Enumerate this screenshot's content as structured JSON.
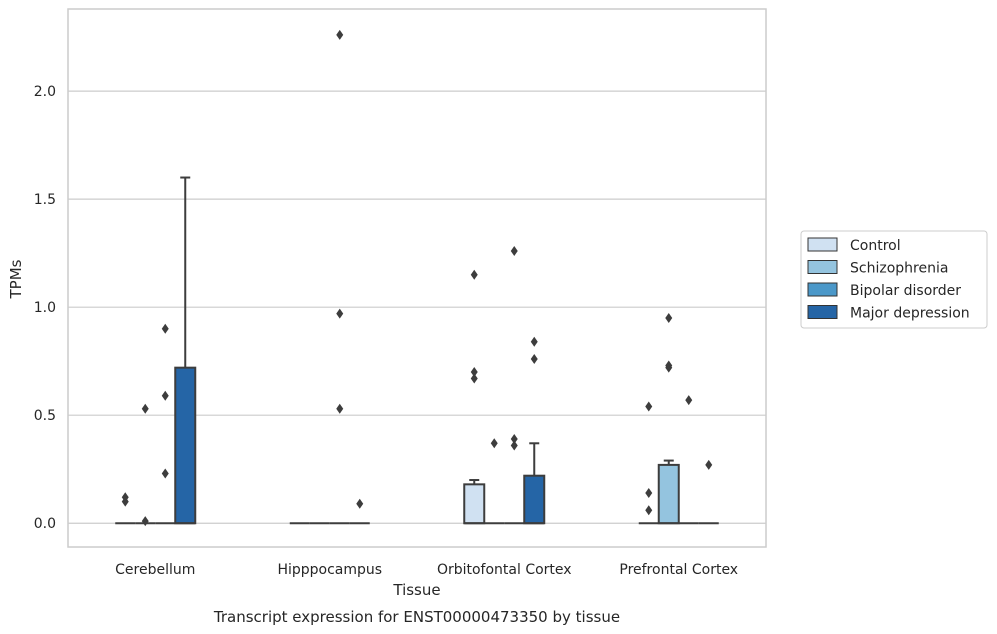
{
  "caption": "Transcript expression for ENST00000473350 by tissue",
  "colors": {
    "Control": "#d0e1f2",
    "Schizophrenia": "#94c4df",
    "Bipolar disorder": "#4b98c9",
    "Major depression": "#2565a6",
    "edge": "#3d3d3d",
    "grid": "#cccccc",
    "frame": "#cccccc"
  },
  "chart_data": {
    "type": "box",
    "xlabel": "Tissue",
    "ylabel": "TPMs",
    "ylim": [
      -0.11,
      2.38
    ],
    "yticks": [
      0.0,
      0.5,
      1.0,
      1.5,
      2.0
    ],
    "ytick_labels": [
      "0.0",
      "0.5",
      "1.0",
      "1.5",
      "2.0"
    ],
    "grid": "horizontal",
    "legend_position": "right",
    "categories": [
      "Cerebellum",
      "Hipppocampus",
      "Orbitofontal Cortex",
      "Prefrontal Cortex"
    ],
    "series": [
      {
        "name": "Control",
        "boxes": [
          {
            "q1": 0,
            "median": 0,
            "q3": 0,
            "whislo": 0,
            "whishi": 0,
            "fliers": [
              0.1,
              0.12
            ]
          },
          {
            "q1": 0,
            "median": 0,
            "q3": 0,
            "whislo": 0,
            "whishi": 0,
            "fliers": []
          },
          {
            "q1": 0,
            "median": 0,
            "q3": 0.18,
            "whislo": 0,
            "whishi": 0.2,
            "fliers": [
              0.67,
              0.7,
              1.15
            ]
          },
          {
            "q1": 0,
            "median": 0,
            "q3": 0,
            "whislo": 0,
            "whishi": 0,
            "fliers": [
              0.06,
              0.14,
              0.54
            ]
          }
        ]
      },
      {
        "name": "Schizophrenia",
        "boxes": [
          {
            "q1": 0,
            "median": 0,
            "q3": 0,
            "whislo": 0,
            "whishi": 0,
            "fliers": [
              0.01,
              0.53
            ]
          },
          {
            "q1": 0,
            "median": 0,
            "q3": 0,
            "whislo": 0,
            "whishi": 0,
            "fliers": []
          },
          {
            "q1": 0,
            "median": 0,
            "q3": 0,
            "whislo": 0,
            "whishi": 0,
            "fliers": [
              0.37
            ]
          },
          {
            "q1": 0,
            "median": 0,
            "q3": 0.27,
            "whislo": 0,
            "whishi": 0.29,
            "fliers": [
              0.72,
              0.73,
              0.95
            ]
          }
        ]
      },
      {
        "name": "Bipolar disorder",
        "boxes": [
          {
            "q1": 0,
            "median": 0,
            "q3": 0,
            "whislo": 0,
            "whishi": 0,
            "fliers": [
              0.23,
              0.59,
              0.9
            ]
          },
          {
            "q1": 0,
            "median": 0,
            "q3": 0,
            "whislo": 0,
            "whishi": 0,
            "fliers": [
              0.53,
              0.97,
              2.26
            ]
          },
          {
            "q1": 0,
            "median": 0,
            "q3": 0,
            "whislo": 0,
            "whishi": 0,
            "fliers": [
              0.36,
              0.39,
              1.26
            ]
          },
          {
            "q1": 0,
            "median": 0,
            "q3": 0,
            "whislo": 0,
            "whishi": 0,
            "fliers": [
              0.57
            ]
          }
        ]
      },
      {
        "name": "Major depression",
        "boxes": [
          {
            "q1": 0,
            "median": 0,
            "q3": 0.72,
            "whislo": 0,
            "whishi": 1.6,
            "fliers": []
          },
          {
            "q1": 0,
            "median": 0,
            "q3": 0,
            "whislo": 0,
            "whishi": 0,
            "fliers": [
              0.09
            ]
          },
          {
            "q1": 0,
            "median": 0,
            "q3": 0.22,
            "whislo": 0,
            "whishi": 0.37,
            "fliers": [
              0.76,
              0.84
            ]
          },
          {
            "q1": 0,
            "median": 0,
            "q3": 0,
            "whislo": 0,
            "whishi": 0,
            "fliers": [
              0.27
            ]
          }
        ]
      }
    ]
  }
}
